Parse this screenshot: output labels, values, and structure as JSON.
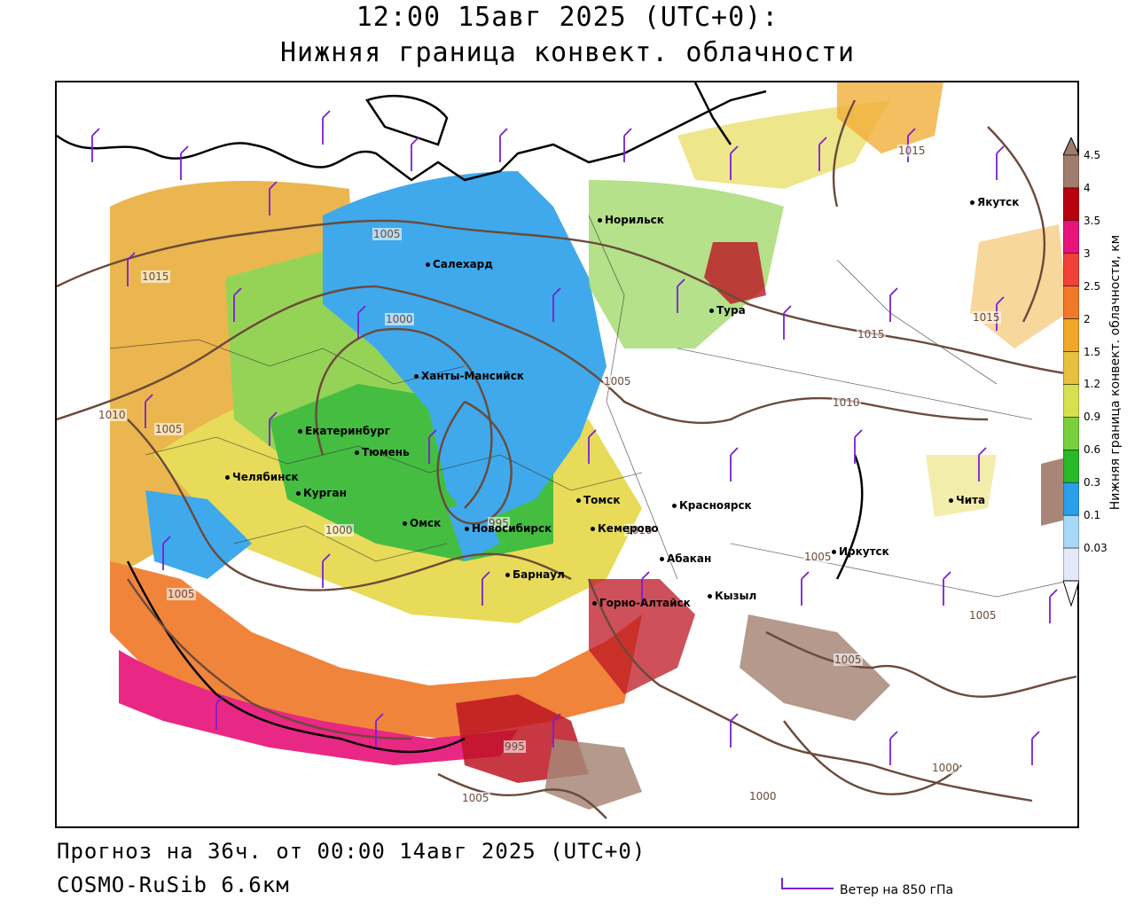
{
  "header": {
    "title": "12:00 15авг 2025 (UTC+0):",
    "subtitle": "Нижняя граница конвект. облачности"
  },
  "footer": {
    "forecast": "Прогноз на 36ч. от 00:00 14авг 2025 (UTC+0)",
    "model": "COSMO-RuSib 6.6км",
    "wind_legend": "Ветер на 850 гПа"
  },
  "legend": {
    "title": "Нижняя граница конвект. облачности, км",
    "levels": [
      "4.5",
      "4",
      "3.5",
      "3",
      "2.5",
      "2",
      "1.5",
      "1.2",
      "0.9",
      "0.6",
      "0.3",
      "0.1",
      "0.03"
    ],
    "colors": [
      "#a07c6c",
      "#b8000f",
      "#e8147a",
      "#f0423a",
      "#f07a2a",
      "#f0a828",
      "#e8c040",
      "#d8e050",
      "#7ad03c",
      "#28b828",
      "#2aa0ea",
      "#a8d8f8",
      "#e4e8f8"
    ]
  },
  "cities": [
    {
      "name": "Норильск"
    },
    {
      "name": "Якутск"
    },
    {
      "name": "Салехард"
    },
    {
      "name": "Тура"
    },
    {
      "name": "Ханты-Мансийск"
    },
    {
      "name": "Екатеринбург"
    },
    {
      "name": "Тюмень"
    },
    {
      "name": "Челябинск"
    },
    {
      "name": "Курган"
    },
    {
      "name": "Омск"
    },
    {
      "name": "Новосибирск"
    },
    {
      "name": "Томск"
    },
    {
      "name": "Кемерово"
    },
    {
      "name": "Красноярск"
    },
    {
      "name": "Барнаул"
    },
    {
      "name": "Абакан"
    },
    {
      "name": "Кызыл"
    },
    {
      "name": "Горно-Алтайск"
    },
    {
      "name": "Иркутск"
    },
    {
      "name": "Чита"
    }
  ],
  "isobars": [
    "1015",
    "1015",
    "1015",
    "1015",
    "1005",
    "1000",
    "1005",
    "1010",
    "1005",
    "1010",
    "1000",
    "995",
    "1005",
    "1010",
    "1005",
    "1005",
    "1000",
    "1000",
    "1005",
    "995",
    "1005"
  ]
}
